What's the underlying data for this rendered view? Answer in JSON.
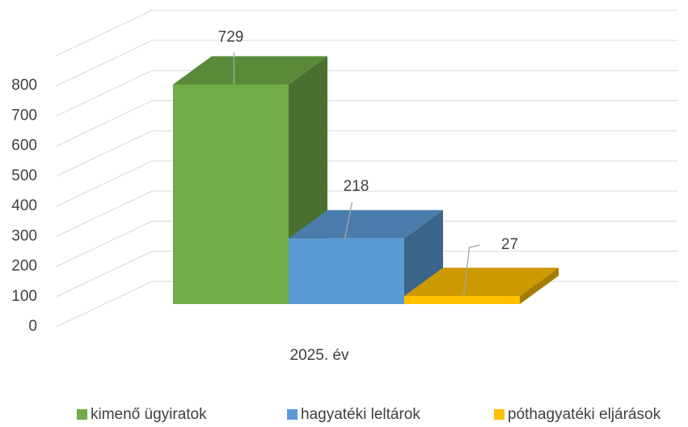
{
  "chart_data": {
    "type": "bar3d",
    "categories": [
      "2025. év"
    ],
    "series": [
      {
        "name": "kimenő ügyiratok",
        "color": "#70ad47",
        "values": [
          729
        ]
      },
      {
        "name": "hagyatéki leltárok",
        "color": "#5b9bd5",
        "values": [
          218
        ]
      },
      {
        "name": "póthagyatéki eljárások",
        "color": "#ffc000",
        "values": [
          27
        ]
      }
    ],
    "ylim": [
      0,
      900
    ],
    "yticks": [
      0,
      100,
      200,
      300,
      400,
      500,
      600,
      700,
      800
    ],
    "grid": true,
    "legend": "bottom"
  }
}
